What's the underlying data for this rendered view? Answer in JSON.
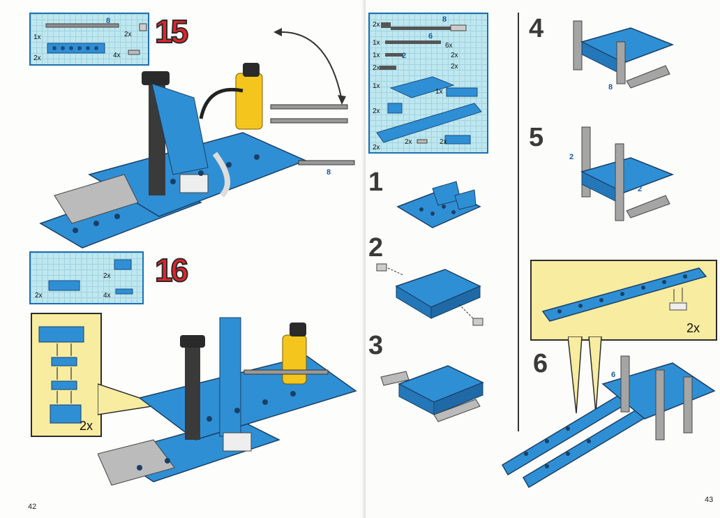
{
  "left_page": {
    "page_number": "42",
    "step_15": {
      "number": "15",
      "parts": [
        {
          "qty": "1x",
          "length_label": "8",
          "desc": "axle"
        },
        {
          "qty": "2x",
          "desc": "bush"
        },
        {
          "qty": "2x",
          "desc": "beam"
        },
        {
          "qty": "4x",
          "desc": "connector peg"
        }
      ],
      "model_label": "8"
    },
    "step_16": {
      "number": "16",
      "parts": [
        {
          "qty": "2x",
          "desc": "beam 1x4"
        },
        {
          "qty": "2x",
          "desc": "brick 1x2"
        },
        {
          "qty": "4x",
          "desc": "plate 1x2"
        }
      ],
      "callout_qty": "2x"
    }
  },
  "right_page": {
    "page_number": "43",
    "parts": [
      {
        "qty": "2x",
        "length_label": "8"
      },
      {
        "qty": "1x",
        "length_label": "6"
      },
      {
        "qty": "1x",
        "length_label": "2"
      },
      {
        "qty": "2x"
      },
      {
        "qty": "6x"
      },
      {
        "qty": "2x"
      },
      {
        "qty": "2x"
      },
      {
        "qty": "1x"
      },
      {
        "qty": "1x"
      },
      {
        "qty": "2x"
      },
      {
        "qty": "2x"
      },
      {
        "qty": "2x"
      },
      {
        "qty": "2x"
      }
    ],
    "steps": [
      {
        "number": "1"
      },
      {
        "number": "2"
      },
      {
        "number": "3"
      },
      {
        "number": "4",
        "label": "8"
      },
      {
        "number": "5",
        "labels": [
          "2",
          "2"
        ]
      },
      {
        "number": "6",
        "label": "6",
        "callout_qty": "2x"
      }
    ]
  },
  "colors": {
    "brick_blue": "#2f8fd4",
    "frame_blue": "#1d6fb3",
    "step_red": "#e2242b",
    "callout_yellow": "#f7eca0",
    "grey": "#9a9a9a"
  }
}
